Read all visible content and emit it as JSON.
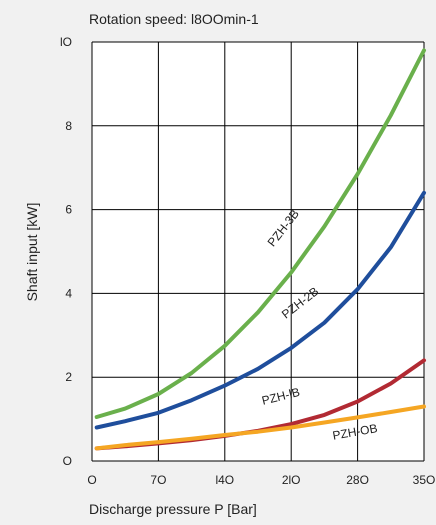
{
  "chart_data": {
    "type": "line",
    "title": "Rotation speed: l8OOmin-1",
    "xlabel": "Discharge pressure P [Bar]",
    "ylabel": "Shaft input [kW]",
    "xlim": [
      0,
      350
    ],
    "ylim": [
      0,
      10
    ],
    "x_ticks": [
      0,
      70,
      140,
      210,
      280,
      350
    ],
    "x_tick_labels": [
      "O",
      "7O",
      "l4O",
      "2lO",
      "28O",
      "35O"
    ],
    "y_ticks": [
      0,
      2,
      4,
      6,
      8,
      10
    ],
    "y_tick_labels": [
      "O",
      "2",
      "4",
      "6",
      "8",
      "lO"
    ],
    "grid": true,
    "series": [
      {
        "name": "PZH-3B",
        "color": "#6ab04c",
        "x": [
          5,
          35,
          70,
          105,
          140,
          175,
          210,
          245,
          280,
          315,
          350
        ],
        "y": [
          1.05,
          1.25,
          1.6,
          2.1,
          2.75,
          3.55,
          4.5,
          5.6,
          6.85,
          8.25,
          9.8
        ]
      },
      {
        "name": "PZH-2B",
        "color": "#1f4e9c",
        "x": [
          5,
          35,
          70,
          105,
          140,
          175,
          210,
          245,
          280,
          315,
          350
        ],
        "y": [
          0.8,
          0.95,
          1.15,
          1.45,
          1.8,
          2.2,
          2.7,
          3.3,
          4.1,
          5.1,
          6.4
        ]
      },
      {
        "name": "PZH-lB",
        "color": "#b22a33",
        "x": [
          5,
          35,
          70,
          105,
          140,
          175,
          210,
          245,
          280,
          315,
          350
        ],
        "y": [
          0.3,
          0.35,
          0.42,
          0.5,
          0.6,
          0.72,
          0.88,
          1.1,
          1.42,
          1.85,
          2.4
        ]
      },
      {
        "name": "PZH-OB",
        "color": "#f5a623",
        "x": [
          5,
          35,
          70,
          105,
          140,
          175,
          210,
          245,
          280,
          315,
          350
        ],
        "y": [
          0.3,
          0.38,
          0.45,
          0.53,
          0.62,
          0.7,
          0.8,
          0.92,
          1.04,
          1.17,
          1.3
        ]
      }
    ],
    "annotations": [
      {
        "text": "PZH-3B",
        "series": "PZH-3B",
        "x": 205,
        "y": 5.5,
        "angle": -52
      },
      {
        "text": "PZH-2B",
        "series": "PZH-2B",
        "x": 222,
        "y": 3.7,
        "angle": -38
      },
      {
        "text": "PZH-lB",
        "series": "PZH-lB",
        "x": 200,
        "y": 1.45,
        "angle": -14
      },
      {
        "text": "PZH-OB",
        "series": "PZH-OB",
        "x": 278,
        "y": 0.6,
        "angle": -10
      }
    ]
  }
}
